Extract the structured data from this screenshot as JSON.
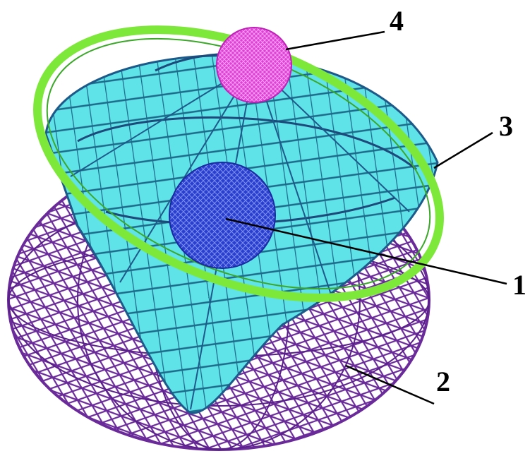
{
  "callouts": [
    {
      "label": "4"
    },
    {
      "label": "3"
    },
    {
      "label": "1"
    },
    {
      "label": "2"
    }
  ]
}
